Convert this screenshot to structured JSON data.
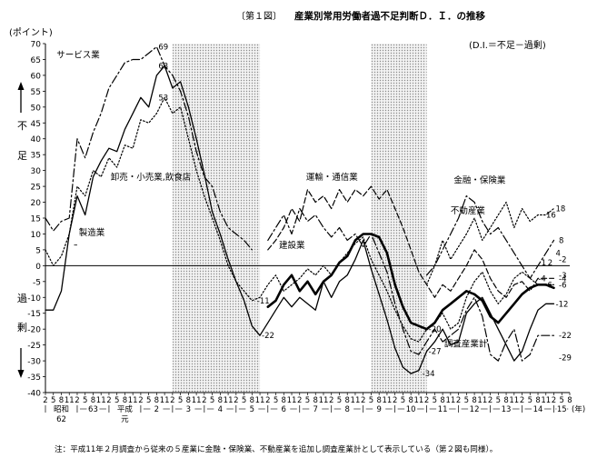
{
  "chart_data": {
    "type": "line",
    "title_prefix": "〔第１図〕",
    "title": "産業別常用労働者過不足判断Ｄ．Ｉ．の推移",
    "subtitle": "(D.I.＝不足－過剰)",
    "y_unit": "(ポイント)",
    "y_label_top": [
      "不",
      "足"
    ],
    "y_label_bottom": [
      "過",
      "剰"
    ],
    "x_unit": "(年)",
    "ylim": [
      -40,
      70
    ],
    "y_ticks": [
      70,
      65,
      60,
      55,
      50,
      45,
      40,
      35,
      30,
      25,
      20,
      15,
      10,
      5,
      0,
      -5,
      -10,
      -15,
      -20,
      -25,
      -30,
      -35,
      -40
    ],
    "x_range": [
      1987.0,
      2003.5
    ],
    "x_month_labels": [
      "2",
      "5",
      "8",
      "11"
    ],
    "x_years": [
      {
        "label": "昭和\n62",
        "x": 1987.0
      },
      {
        "label": "63",
        "x": 1988.0
      },
      {
        "label": "平成\n元",
        "x": 1989.0
      },
      {
        "label": "2",
        "x": 1990.0
      },
      {
        "label": "3",
        "x": 1991.0
      },
      {
        "label": "4",
        "x": 1992.0
      },
      {
        "label": "5",
        "x": 1993.0
      },
      {
        "label": "6",
        "x": 1994.0
      },
      {
        "label": "7",
        "x": 1995.0
      },
      {
        "label": "8",
        "x": 1996.0
      },
      {
        "label": "9",
        "x": 1997.0
      },
      {
        "label": "10",
        "x": 1998.0
      },
      {
        "label": "11",
        "x": 1999.0
      },
      {
        "label": "12",
        "x": 2000.0
      },
      {
        "label": "13",
        "x": 2001.0
      },
      {
        "label": "14",
        "x": 2002.0
      },
      {
        "label": "15",
        "x": 2003.0
      }
    ],
    "shaded_periods": [
      [
        1991.0,
        1993.75
      ],
      [
        1997.25,
        1999.0
      ]
    ],
    "series": [
      {
        "name": "サービス業",
        "style": "dashdot",
        "x": [
          1987.0,
          1987.25,
          1987.5,
          1987.75,
          1988.0,
          1988.25,
          1988.5,
          1988.75,
          1989.0,
          1989.25,
          1989.5,
          1989.75,
          1990.0,
          1990.25,
          1990.5,
          1990.75,
          1991.0,
          1991.25,
          1991.5,
          1991.75,
          1992.0,
          1992.25,
          1992.5,
          1992.75,
          1993.0,
          1993.25,
          1993.5
        ],
        "y": [
          15,
          11,
          14,
          15,
          40,
          34,
          42,
          48,
          56,
          60,
          64,
          65,
          65,
          67,
          69,
          63,
          60,
          55,
          47,
          36,
          28,
          25,
          17,
          12,
          10,
          8,
          5
        ]
      },
      {
        "name": "製造業",
        "style": "solid",
        "x": [
          1987.0,
          1987.25,
          1987.5,
          1987.75,
          1988.0,
          1988.25,
          1988.5,
          1988.75,
          1989.0,
          1989.25,
          1989.5,
          1989.75,
          1990.0,
          1990.25,
          1990.5,
          1990.75,
          1991.0,
          1991.25,
          1991.5,
          1991.75,
          1992.0,
          1992.25,
          1992.5,
          1992.75,
          1993.0,
          1993.25,
          1993.5,
          1993.75,
          1994.0,
          1994.25,
          1994.5,
          1994.75,
          1995.0,
          1995.25,
          1995.5,
          1995.75,
          1996.0,
          1996.25,
          1996.5,
          1996.75,
          1997.0,
          1997.25,
          1997.5,
          1997.75,
          1998.0,
          1998.25,
          1998.5,
          1998.75,
          1999.0,
          1999.25,
          1999.5,
          1999.75,
          2000.0,
          2000.25,
          2000.5,
          2000.75,
          2001.0,
          2001.25,
          2001.5,
          2001.75,
          2002.0,
          2002.25,
          2002.5,
          2002.75,
          2003.0
        ],
        "y": [
          -14,
          -14,
          -8,
          10,
          22,
          16,
          28,
          33,
          37,
          36,
          43,
          48,
          53,
          50,
          60,
          63,
          56,
          58,
          50,
          40,
          29,
          17,
          10,
          2,
          -5,
          -11,
          -19,
          -22,
          -18,
          -14,
          -10,
          -13,
          -10,
          -12,
          -14,
          -5,
          -10,
          -5,
          -3,
          2,
          8,
          -1,
          -9,
          -17,
          -26,
          -32,
          -34,
          -33,
          -27,
          -24,
          -20,
          -25,
          -24,
          -15,
          -12,
          -10,
          -15,
          -20,
          -25,
          -30,
          -27,
          -20,
          -14,
          -12,
          -12
        ]
      },
      {
        "name": "卸売・小売業,飲食店",
        "style": "dotted",
        "x": [
          1987.0,
          1987.25,
          1987.5,
          1987.75,
          1988.0,
          1988.25,
          1988.5,
          1988.75,
          1989.0,
          1989.25,
          1989.5,
          1989.75,
          1990.0,
          1990.25,
          1990.5,
          1990.75,
          1991.0,
          1991.25,
          1991.5,
          1991.75,
          1992.0,
          1992.25,
          1992.5,
          1992.75,
          1993.0,
          1993.25,
          1993.5,
          1993.75,
          1994.0,
          1994.25,
          1994.5,
          1994.75,
          1995.0,
          1995.25,
          1995.5,
          1995.75,
          1996.0,
          1996.25,
          1996.5,
          1996.75,
          1997.0,
          1997.25,
          1997.5,
          1997.75,
          1998.0,
          1998.25,
          1998.5,
          1998.75,
          1999.0,
          1999.25,
          1999.5,
          1999.75,
          2000.0,
          2000.25,
          2000.5,
          2000.75,
          2001.0,
          2001.25,
          2001.5,
          2001.75,
          2002.0,
          2002.25,
          2002.5,
          2002.75,
          2003.0
        ],
        "y": [
          5,
          0,
          3,
          10,
          25,
          22,
          30,
          28,
          34,
          31,
          38,
          37,
          46,
          45,
          48,
          53,
          48,
          50,
          40,
          30,
          22,
          15,
          8,
          0,
          -5,
          -8,
          -11,
          -10,
          -6,
          -3,
          -8,
          -6,
          -4,
          -1,
          -3,
          0,
          -3,
          1,
          4,
          7,
          9,
          2,
          -3,
          -8,
          -14,
          -19,
          -23,
          -24,
          -20,
          -18,
          -15,
          -20,
          -18,
          -10,
          -5,
          -2,
          -8,
          -12,
          -9,
          -4,
          -2,
          -4,
          -6,
          -6,
          -6
        ]
      },
      {
        "name": "運輸・通信業",
        "style": "dashed",
        "x": [
          1994.0,
          1994.25,
          1994.5,
          1994.75,
          1995.0,
          1995.25,
          1995.5,
          1995.75,
          1996.0,
          1996.25,
          1996.5,
          1996.75,
          1997.0,
          1997.25,
          1997.5,
          1997.75,
          1998.0,
          1998.25,
          1998.5,
          1998.75,
          1999.0,
          1999.25,
          1999.5,
          1999.75,
          2000.0,
          2000.25,
          2000.5,
          2000.75,
          2001.0,
          2001.25,
          2001.5,
          2001.75,
          2002.0,
          2002.25,
          2002.5,
          2002.75,
          2003.0
        ],
        "y": [
          5,
          8,
          12,
          18,
          14,
          24,
          20,
          22,
          18,
          24,
          20,
          24,
          22,
          25,
          21,
          24,
          18,
          12,
          5,
          -2,
          -6,
          -10,
          -6,
          -8,
          -4,
          0,
          5,
          2,
          -4,
          -8,
          -10,
          -6,
          -5,
          -8,
          -4,
          -4,
          -4
        ]
      },
      {
        "name": "建設業",
        "style": "dashdot",
        "x": [
          1994.0,
          1994.25,
          1994.5,
          1994.75,
          1995.0,
          1995.25,
          1995.5,
          1995.75,
          1996.0,
          1996.25,
          1996.5,
          1996.75,
          1997.0,
          1997.25,
          1997.5,
          1997.75,
          1998.0,
          1998.25,
          1998.5,
          1998.75,
          1999.0,
          1999.25,
          1999.5,
          1999.75,
          2000.0,
          2000.25,
          2000.5,
          2000.75,
          2001.0,
          2001.25,
          2001.5,
          2001.75,
          2002.0,
          2002.25,
          2002.5,
          2002.75,
          2003.0
        ],
        "y": [
          8,
          12,
          16,
          10,
          18,
          14,
          16,
          12,
          9,
          12,
          8,
          10,
          6,
          10,
          4,
          -2,
          -12,
          -20,
          -27,
          -28,
          -24,
          -20,
          -24,
          -22,
          -20,
          -14,
          -10,
          -16,
          -28,
          -30,
          -24,
          -20,
          -30,
          -28,
          -22,
          -22,
          -22
        ]
      },
      {
        "name": "不動産業",
        "style": "dotted",
        "x": [
          1999.0,
          1999.25,
          1999.5,
          1999.75,
          2000.0,
          2000.25,
          2000.5,
          2000.75,
          2001.0,
          2001.25,
          2001.5,
          2001.75,
          2002.0,
          2002.25,
          2002.5,
          2002.75,
          2003.0
        ],
        "y": [
          -6,
          0,
          8,
          2,
          6,
          10,
          15,
          8,
          12,
          16,
          20,
          12,
          18,
          14,
          16,
          16,
          18
        ]
      },
      {
        "name": "金融・保険業",
        "style": "dashdot",
        "x": [
          1999.0,
          1999.25,
          1999.5,
          1999.75,
          2000.0,
          2000.25,
          2000.5,
          2000.75,
          2001.0,
          2001.25,
          2001.5,
          2001.75,
          2002.0,
          2002.25,
          2002.5,
          2002.75,
          2003.0
        ],
        "y": [
          -3,
          0,
          5,
          10,
          15,
          22,
          20,
          14,
          10,
          12,
          8,
          4,
          0,
          -4,
          0,
          4,
          8
        ]
      },
      {
        "name": "調査産業計",
        "style": "bold",
        "x": [
          1994.0,
          1994.25,
          1994.5,
          1994.75,
          1995.0,
          1995.25,
          1995.5,
          1995.75,
          1996.0,
          1996.25,
          1996.5,
          1996.75,
          1997.0,
          1997.25,
          1997.5,
          1997.75,
          1998.0,
          1998.25,
          1998.5,
          1998.75,
          1999.0,
          1999.25,
          1999.5,
          1999.75,
          2000.0,
          2000.25,
          2000.5,
          2000.75,
          2001.0,
          2001.25,
          2001.5,
          2001.75,
          2002.0,
          2002.25,
          2002.5,
          2002.75,
          2003.0
        ],
        "y": [
          -13,
          -11,
          -6,
          -3,
          -8,
          -5,
          -9,
          -5,
          -3,
          1,
          3,
          8,
          10,
          10,
          9,
          4,
          -6,
          -13,
          -18,
          -19,
          -20,
          -18,
          -14,
          -12,
          -10,
          -8,
          -9,
          -11,
          -16,
          -18,
          -15,
          -12,
          -9,
          -7,
          -6,
          -6,
          -7
        ]
      }
    ],
    "annotations": [
      {
        "text": "69",
        "x": 1990.5,
        "y": 69
      },
      {
        "text": "63",
        "x": 1990.5,
        "y": 63
      },
      {
        "text": "53",
        "x": 1990.5,
        "y": 53
      },
      {
        "text": "-11",
        "x": 1993.6,
        "y": -11
      },
      {
        "text": "-22",
        "x": 1993.75,
        "y": -22
      },
      {
        "text": "-20",
        "x": 1999.0,
        "y": -20
      },
      {
        "text": "-27",
        "x": 1999.0,
        "y": -27
      },
      {
        "text": "-34",
        "x": 1998.8,
        "y": -34
      },
      {
        "text": "16",
        "x": 2002.7,
        "y": 16
      },
      {
        "text": "18",
        "x": 2003.0,
        "y": 18
      },
      {
        "text": "8",
        "x": 2003.1,
        "y": 8
      },
      {
        "text": "4",
        "x": 2003.0,
        "y": 4
      },
      {
        "text": "1",
        "x": 2002.55,
        "y": 1
      },
      {
        "text": "2",
        "x": 2002.75,
        "y": 1
      },
      {
        "text": "-2",
        "x": 2003.1,
        "y": 2
      },
      {
        "text": "-3",
        "x": 2003.1,
        "y": -3
      },
      {
        "text": "-4",
        "x": 2002.45,
        "y": -4
      },
      {
        "text": "-4",
        "x": 2003.1,
        "y": -4
      },
      {
        "text": "-6",
        "x": 2002.65,
        "y": -6
      },
      {
        "text": "-6",
        "x": 2003.1,
        "y": -6
      },
      {
        "text": "-12",
        "x": 2003.0,
        "y": -12
      },
      {
        "text": "-22",
        "x": 2003.1,
        "y": -22
      },
      {
        "text": "-29",
        "x": 2003.1,
        "y": -29
      }
    ],
    "series_labels": [
      {
        "text": "サービス業",
        "x": 1987.35,
        "y": 65.5
      },
      {
        "text": "卸売・小売業,飲食店",
        "x": 1989.05,
        "y": 27
      },
      {
        "text": "製造業",
        "x": 1988.05,
        "y": 9.5
      },
      {
        "text": "運輸・通信業",
        "x": 1995.2,
        "y": 27
      },
      {
        "text": "金融・保険業",
        "x": 1999.85,
        "y": 26
      },
      {
        "text": "不動産業",
        "x": 1999.75,
        "y": 16.5
      },
      {
        "text": "建設業",
        "x": 1994.35,
        "y": 5.5
      },
      {
        "text": "調査産業計",
        "x": 1999.55,
        "y": -25.5
      }
    ],
    "note": "注：平成11年２月調査から従来の５産業に金融・保険業、不動産業を追加し調査産業計として表示している（第２図も同様）。"
  }
}
